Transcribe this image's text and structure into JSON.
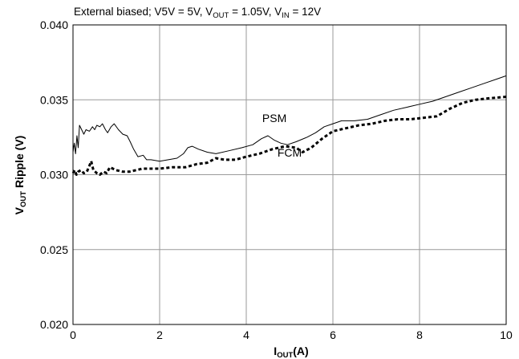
{
  "chart_data": {
    "type": "line",
    "title": "External biased; V5V = 5V, VOUT = 1.05V, VIN = 12V",
    "title_parts": {
      "prefix": "External biased; V5V = 5V, V",
      "vout_sub": "OUT",
      "middle": " = 1.05V, V",
      "vin_sub": "IN",
      "suffix": " = 12V"
    },
    "xlabel": "IOUT(A)",
    "xlabel_parts": {
      "main": "I",
      "sub": "OUT",
      "rest": "(A)"
    },
    "ylabel": "VOUT Ripple (V)",
    "ylabel_parts": {
      "main": "V",
      "sub": "OUT",
      "rest": " Ripple (V)"
    },
    "xlim": [
      0,
      10
    ],
    "ylim": [
      0.02,
      0.04
    ],
    "x_ticks": [
      "0",
      "2",
      "4",
      "6",
      "8",
      "10"
    ],
    "y_ticks": [
      "0.020",
      "0.025",
      "0.030",
      "0.035",
      "0.040"
    ],
    "grid": true,
    "series": [
      {
        "name": "PSM",
        "style": "solid",
        "color": "#000000",
        "points": [
          [
            0.0,
            0.0315
          ],
          [
            0.03,
            0.0321
          ],
          [
            0.06,
            0.0314
          ],
          [
            0.09,
            0.0326
          ],
          [
            0.12,
            0.0318
          ],
          [
            0.15,
            0.0333
          ],
          [
            0.2,
            0.033
          ],
          [
            0.25,
            0.0327
          ],
          [
            0.3,
            0.033
          ],
          [
            0.38,
            0.0329
          ],
          [
            0.45,
            0.0332
          ],
          [
            0.5,
            0.033
          ],
          [
            0.55,
            0.0333
          ],
          [
            0.62,
            0.0332
          ],
          [
            0.68,
            0.0334
          ],
          [
            0.75,
            0.033
          ],
          [
            0.8,
            0.0328
          ],
          [
            0.88,
            0.0332
          ],
          [
            0.95,
            0.0334
          ],
          [
            1.05,
            0.033
          ],
          [
            1.15,
            0.0327
          ],
          [
            1.25,
            0.0326
          ],
          [
            1.32,
            0.0322
          ],
          [
            1.4,
            0.0317
          ],
          [
            1.5,
            0.0312
          ],
          [
            1.62,
            0.0313
          ],
          [
            1.7,
            0.031
          ],
          [
            1.8,
            0.031
          ],
          [
            2.0,
            0.0309
          ],
          [
            2.2,
            0.031
          ],
          [
            2.4,
            0.0311
          ],
          [
            2.55,
            0.0314
          ],
          [
            2.65,
            0.0318
          ],
          [
            2.75,
            0.0319
          ],
          [
            2.9,
            0.0317
          ],
          [
            3.1,
            0.0315
          ],
          [
            3.3,
            0.0314
          ],
          [
            3.6,
            0.0316
          ],
          [
            3.9,
            0.0318
          ],
          [
            4.15,
            0.032
          ],
          [
            4.35,
            0.0324
          ],
          [
            4.5,
            0.0326
          ],
          [
            4.65,
            0.0323
          ],
          [
            4.8,
            0.0321
          ],
          [
            4.95,
            0.032
          ],
          [
            5.15,
            0.0322
          ],
          [
            5.4,
            0.0325
          ],
          [
            5.6,
            0.0328
          ],
          [
            5.8,
            0.0332
          ],
          [
            6.0,
            0.0334
          ],
          [
            6.2,
            0.0336
          ],
          [
            6.5,
            0.0336
          ],
          [
            6.8,
            0.0337
          ],
          [
            7.1,
            0.034
          ],
          [
            7.4,
            0.0343
          ],
          [
            7.7,
            0.0345
          ],
          [
            8.0,
            0.0347
          ],
          [
            8.3,
            0.0349
          ],
          [
            8.6,
            0.0352
          ],
          [
            8.9,
            0.0355
          ],
          [
            9.2,
            0.0358
          ],
          [
            9.5,
            0.0361
          ],
          [
            9.8,
            0.0364
          ],
          [
            10.0,
            0.0366
          ]
        ]
      },
      {
        "name": "FCM",
        "style": "dashed",
        "color": "#000000",
        "points": [
          [
            0.0,
            0.0301
          ],
          [
            0.04,
            0.0303
          ],
          [
            0.08,
            0.03
          ],
          [
            0.12,
            0.0302
          ],
          [
            0.18,
            0.0303
          ],
          [
            0.25,
            0.0301
          ],
          [
            0.32,
            0.0302
          ],
          [
            0.38,
            0.0306
          ],
          [
            0.42,
            0.0309
          ],
          [
            0.47,
            0.0303
          ],
          [
            0.55,
            0.0301
          ],
          [
            0.62,
            0.03
          ],
          [
            0.7,
            0.0302
          ],
          [
            0.78,
            0.0301
          ],
          [
            0.85,
            0.0305
          ],
          [
            0.92,
            0.0304
          ],
          [
            1.0,
            0.0303
          ],
          [
            1.15,
            0.0302
          ],
          [
            1.3,
            0.0302
          ],
          [
            1.45,
            0.0303
          ],
          [
            1.6,
            0.0304
          ],
          [
            1.8,
            0.0304
          ],
          [
            2.0,
            0.0304
          ],
          [
            2.3,
            0.0305
          ],
          [
            2.6,
            0.0305
          ],
          [
            2.85,
            0.0307
          ],
          [
            3.1,
            0.0308
          ],
          [
            3.3,
            0.0311
          ],
          [
            3.5,
            0.031
          ],
          [
            3.75,
            0.031
          ],
          [
            4.0,
            0.0312
          ],
          [
            4.3,
            0.0314
          ],
          [
            4.6,
            0.0317
          ],
          [
            4.9,
            0.0319
          ],
          [
            5.15,
            0.0318
          ],
          [
            5.3,
            0.0315
          ],
          [
            5.5,
            0.0318
          ],
          [
            5.75,
            0.0324
          ],
          [
            6.0,
            0.0329
          ],
          [
            6.3,
            0.0331
          ],
          [
            6.6,
            0.0333
          ],
          [
            6.9,
            0.0334
          ],
          [
            7.2,
            0.0336
          ],
          [
            7.5,
            0.0337
          ],
          [
            7.8,
            0.0337
          ],
          [
            8.1,
            0.0338
          ],
          [
            8.4,
            0.0339
          ],
          [
            8.7,
            0.0344
          ],
          [
            9.0,
            0.0348
          ],
          [
            9.3,
            0.035
          ],
          [
            9.6,
            0.0351
          ],
          [
            10.0,
            0.0352
          ]
        ]
      }
    ],
    "annotations": [
      {
        "text": "PSM",
        "x": 4.65,
        "y": 0.0335
      },
      {
        "text": "FCM",
        "x": 5.0,
        "y": 0.0312
      }
    ]
  }
}
